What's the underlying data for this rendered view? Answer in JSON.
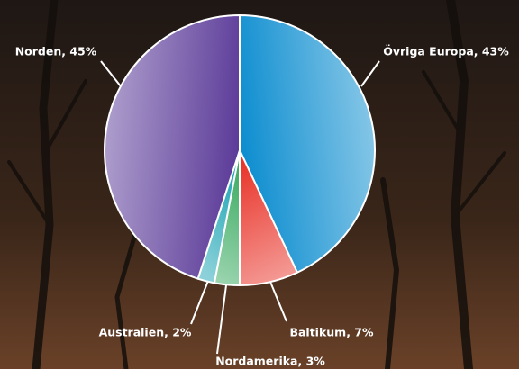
{
  "chart_data": {
    "type": "pie",
    "values": [
      43,
      7,
      3,
      2,
      45
    ],
    "value_labels": [
      "Övriga Europa, 43%",
      "Baltikum, 7%",
      "Nordamerika, 3%",
      "Australien, 2%",
      "Norden, 45%"
    ],
    "colors": [
      "#0a8ccf",
      "#e8352a",
      "#35a85c",
      "#19a3b3",
      "#5b3a98"
    ]
  }
}
